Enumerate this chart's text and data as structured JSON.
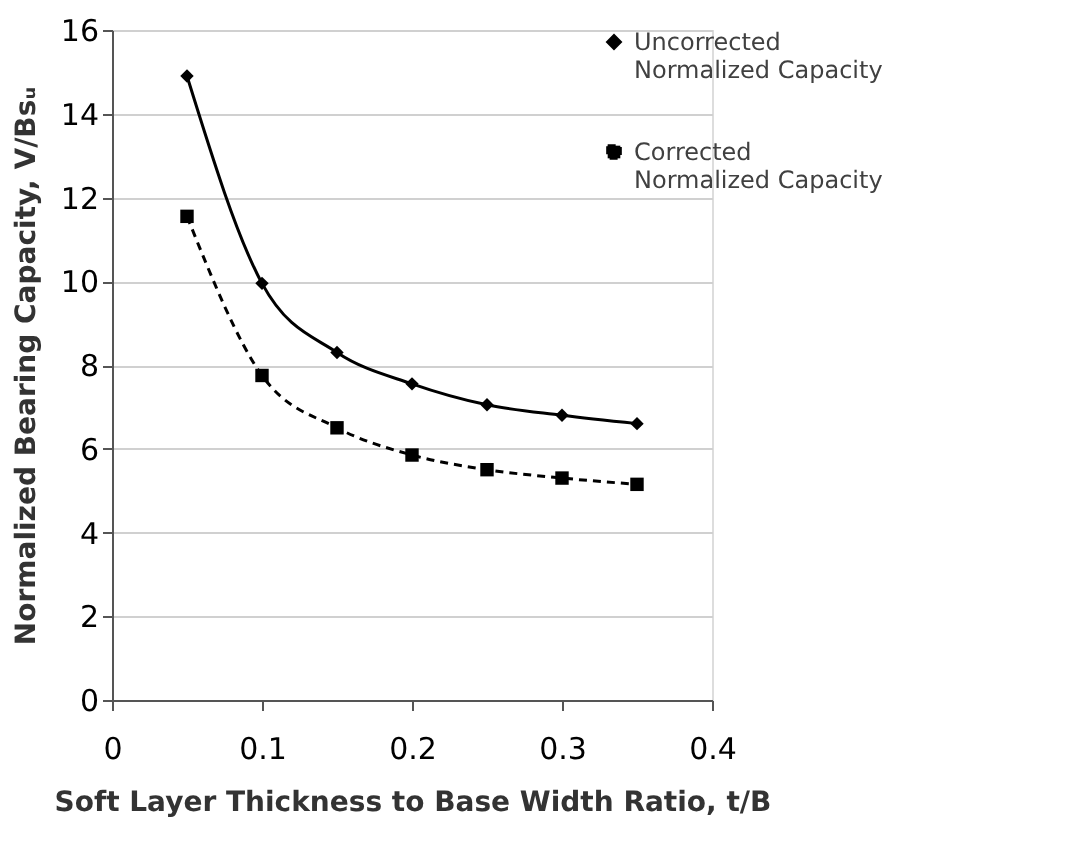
{
  "chart_data": {
    "type": "line",
    "xlabel": "Soft Layer Thickness to Base Width Ratio, t/B",
    "ylabel": "Normalized Bearing Capacity, V/Bsᵤ",
    "x": [
      0.05,
      0.1,
      0.15,
      0.2,
      0.25,
      0.3,
      0.35
    ],
    "series": [
      {
        "name": "Uncorrected Normalized Capacity",
        "color": "#000000",
        "marker": "diamond",
        "line_style": "solid",
        "values": [
          14.9,
          9.95,
          8.3,
          7.55,
          7.05,
          6.8,
          6.6
        ]
      },
      {
        "name": "Corrected Normalized Capacity",
        "color": "#000000",
        "marker": "square",
        "line_style": "dashed",
        "values": [
          11.55,
          7.75,
          6.5,
          5.85,
          5.5,
          5.3,
          5.15
        ]
      }
    ],
    "xlim": [
      0,
      0.4
    ],
    "xticks": [
      0,
      0.1,
      0.2,
      0.3,
      0.4
    ],
    "ylim": [
      0,
      16
    ],
    "yticks": [
      0,
      2,
      4,
      6,
      8,
      10,
      12,
      14,
      16
    ],
    "grid": "y",
    "legend": "top right"
  }
}
